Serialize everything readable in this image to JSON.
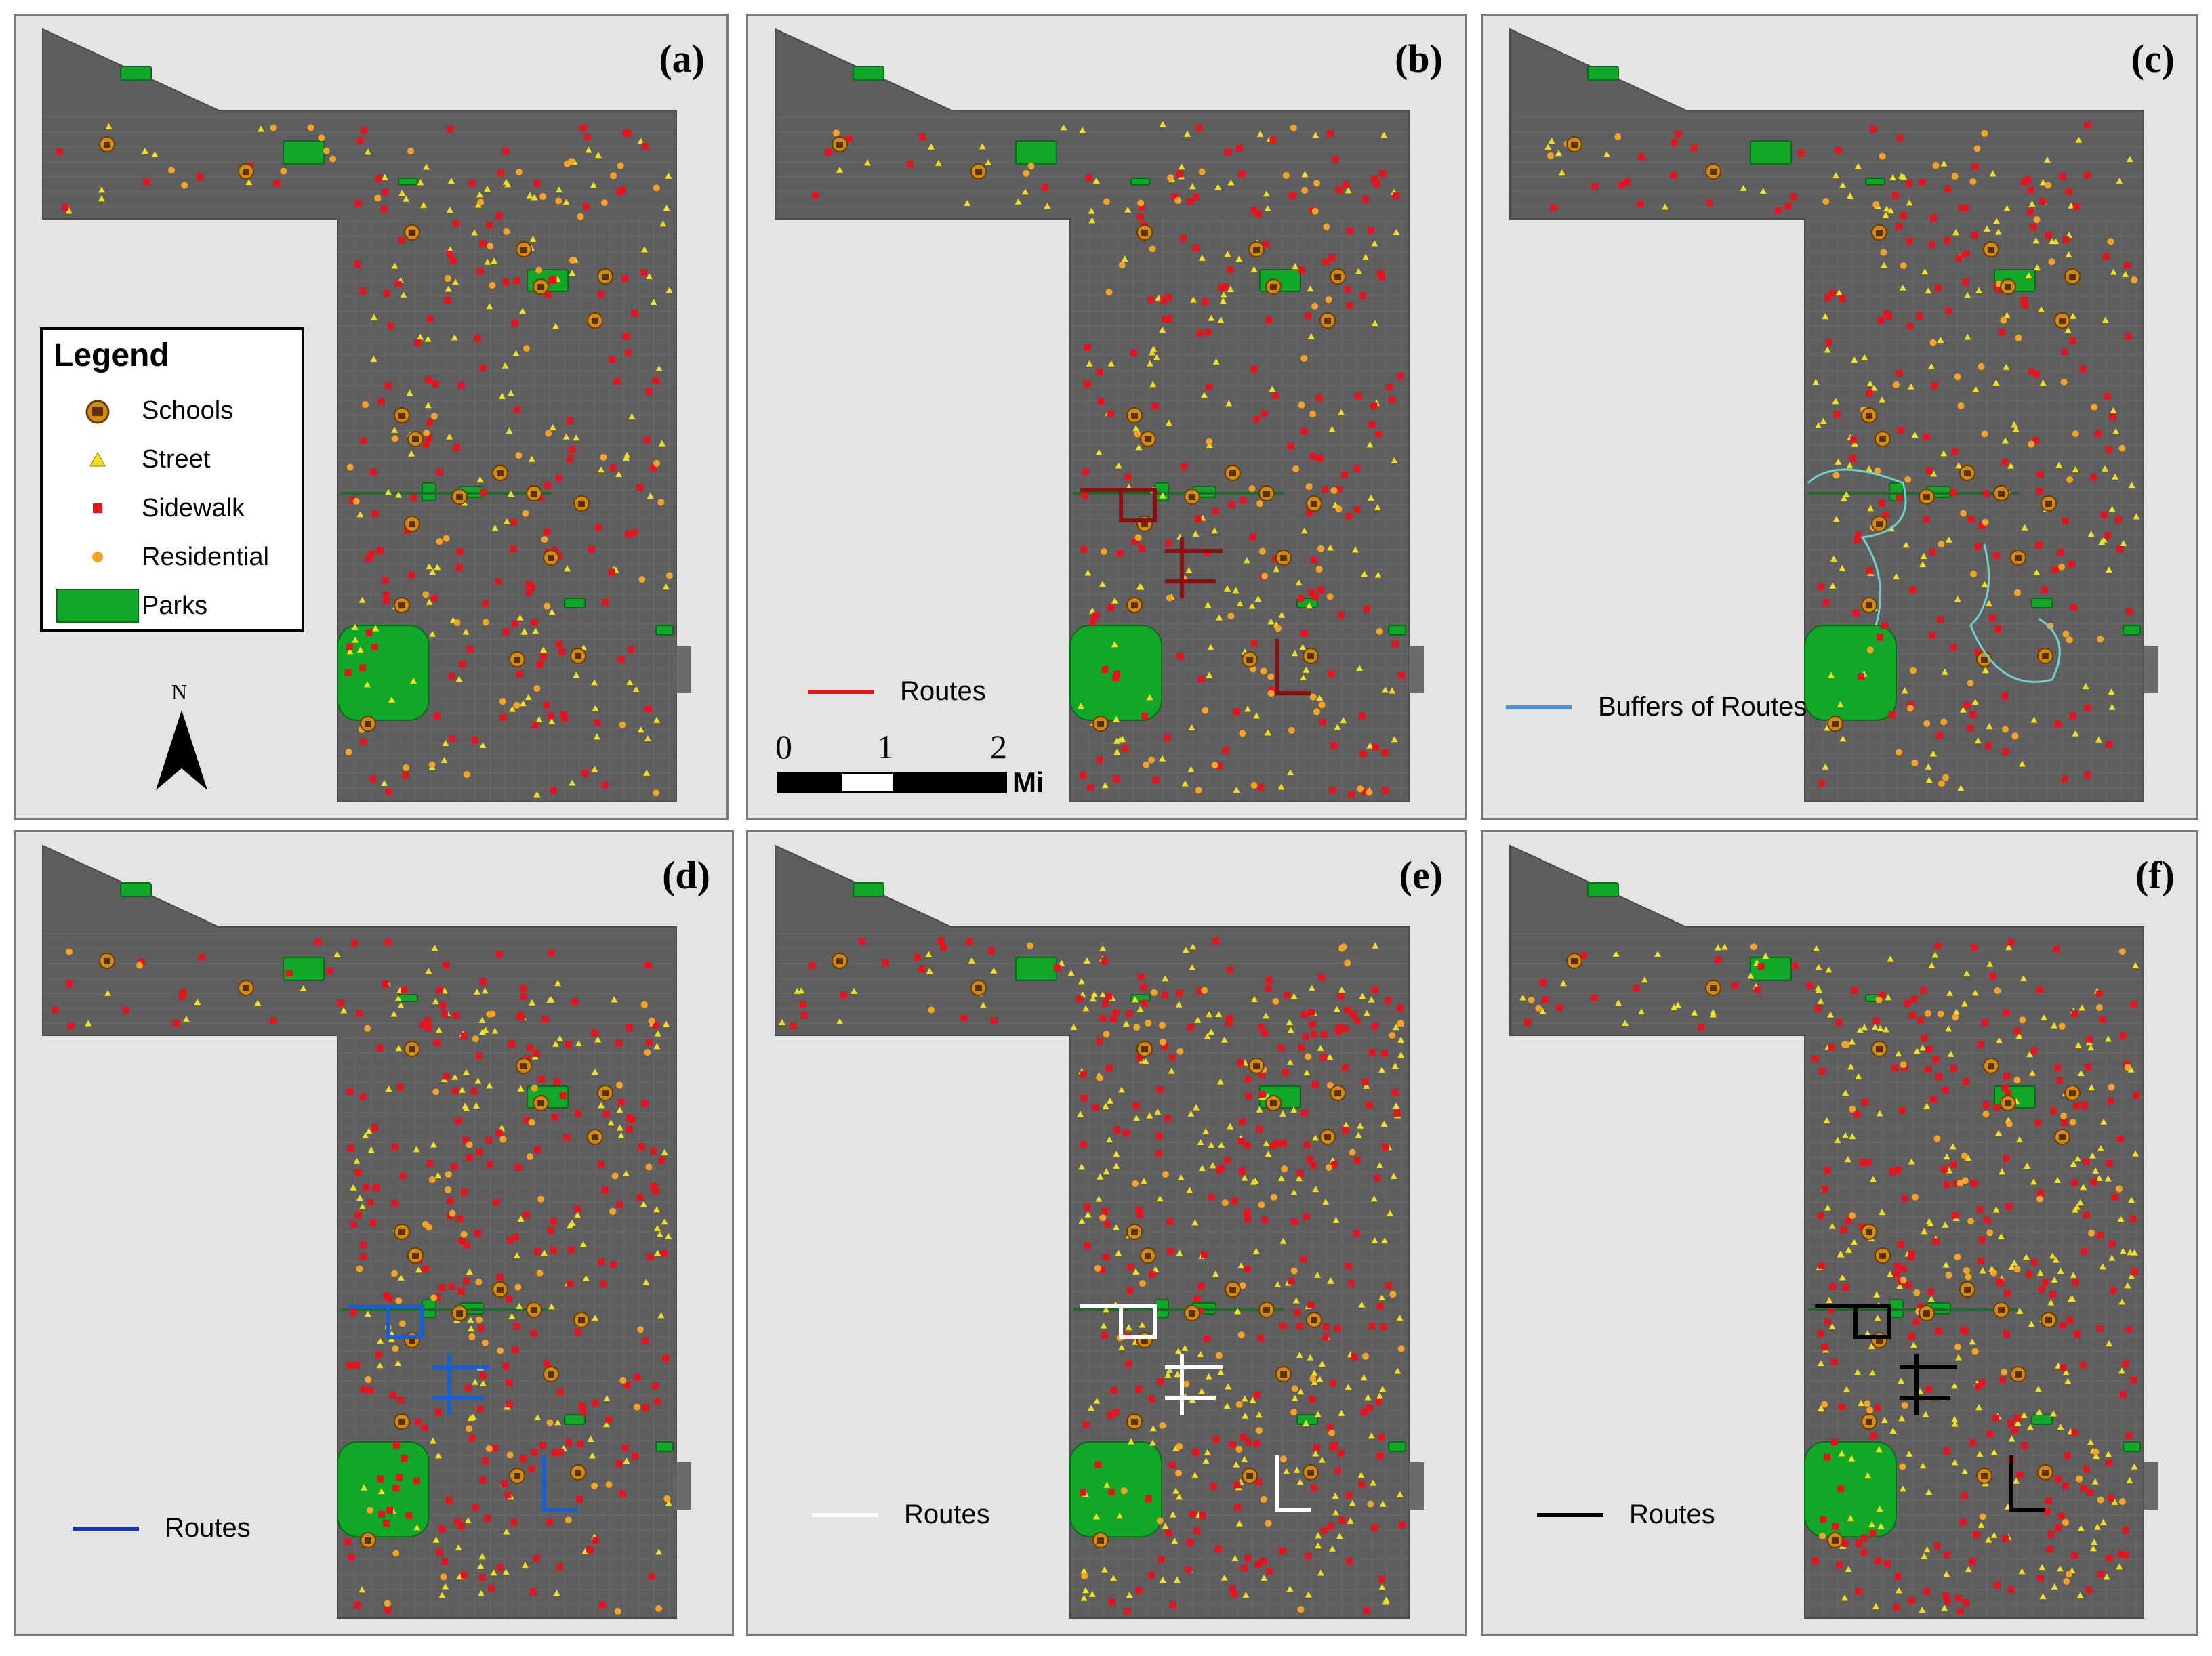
{
  "legend": {
    "title": "Legend",
    "items": [
      {
        "label": "Schools",
        "icon": "school-icon",
        "color": "#d38a12"
      },
      {
        "label": "Street",
        "icon": "triangle-icon",
        "color": "#f0e020"
      },
      {
        "label": "Sidewalk",
        "icon": "square-icon",
        "color": "#e4141e"
      },
      {
        "label": "Residential",
        "icon": "dot-icon",
        "color": "#f4a326"
      },
      {
        "label": "Parks",
        "icon": "park-swatch",
        "color": "#11a82a"
      }
    ]
  },
  "north_arrow": {
    "label": "N"
  },
  "scale_bar": {
    "ticks": [
      "0",
      "1",
      "2"
    ],
    "unit": "Mi"
  },
  "colors": {
    "map_fill": "#5e5e5e",
    "background": "#e4e4e4",
    "park": "#11a82a",
    "school": "#d38a12",
    "street": "#f0e020",
    "sidewalk": "#e4141e",
    "residential": "#f4a326"
  },
  "panels": [
    {
      "label": "(a)",
      "routes_legend": null
    },
    {
      "label": "(b)",
      "routes_legend": {
        "label": "Routes",
        "color": "#e41a1c"
      }
    },
    {
      "label": "(c)",
      "routes_legend": {
        "label": "Buffers of Routes",
        "color": "#4a90d9"
      }
    },
    {
      "label": "(d)",
      "routes_legend": {
        "label": "Routes",
        "color": "#1a35b8"
      }
    },
    {
      "label": "(e)",
      "routes_legend": {
        "label": "Routes",
        "color": "#ffffff"
      }
    },
    {
      "label": "(f)",
      "routes_legend": {
        "label": "Routes",
        "color": "#000000"
      }
    }
  ]
}
